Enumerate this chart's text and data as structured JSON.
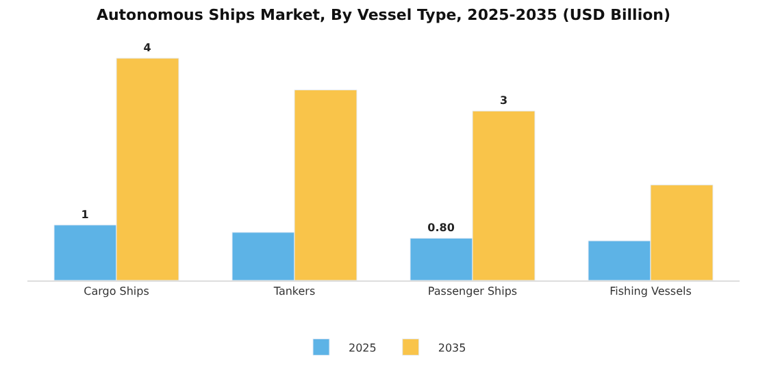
{
  "chart_data": {
    "type": "bar",
    "title": "Autonomous Ships Market, By Vessel Type, 2025-2035 (USD Billion)",
    "categories": [
      "Cargo Ships",
      "Tankers",
      "Passenger Ships",
      "Fishing Vessels"
    ],
    "series": [
      {
        "name": "2025",
        "color": "#5db3e6",
        "values": [
          1.05,
          0.91,
          0.8,
          0.75
        ],
        "value_labels": [
          "1",
          null,
          "0.80",
          null
        ]
      },
      {
        "name": "2035",
        "color": "#f9c44a",
        "values": [
          4.21,
          3.61,
          3.21,
          1.81
        ],
        "value_labels": [
          "4",
          null,
          "3",
          null
        ]
      }
    ],
    "tick_labels": "x",
    "legend": "bottom"
  }
}
